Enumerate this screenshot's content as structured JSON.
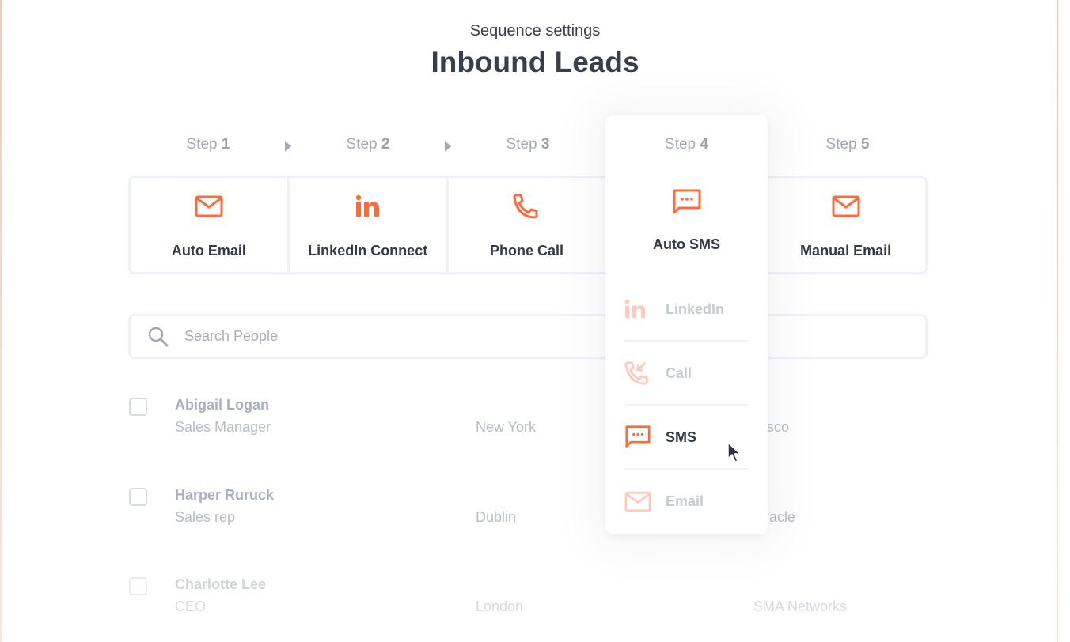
{
  "header": {
    "subtitle": "Sequence settings",
    "title": "Inbound Leads"
  },
  "accent_color": "#ff6a3d",
  "steps": [
    {
      "prefix": "Step",
      "number": "1",
      "label": "Auto Email",
      "icon": "mail-icon"
    },
    {
      "prefix": "Step",
      "number": "2",
      "label": "LinkedIn Connect",
      "icon": "linkedin-icon"
    },
    {
      "prefix": "Step",
      "number": "3",
      "label": "Phone Call",
      "icon": "phone-icon"
    },
    {
      "prefix": "Step",
      "number": "4",
      "label": "Auto SMS",
      "icon": "sms-icon"
    },
    {
      "prefix": "Step",
      "number": "5",
      "label": "Manual Email",
      "icon": "mail-icon"
    }
  ],
  "search": {
    "placeholder": "Search People"
  },
  "people": [
    {
      "name": "Abigail Logan",
      "role": "Sales Manager",
      "city": "New York",
      "company": "Cisco"
    },
    {
      "name": "Harper Ruruck",
      "role": "Sales rep",
      "city": "Dublin",
      "company": "Oracle"
    },
    {
      "name": "Charlotte Lee",
      "role": "CEO",
      "city": "London",
      "company": "SMA Networks"
    }
  ],
  "dropdown": {
    "options": [
      {
        "label": "LinkedIn",
        "icon": "linkedin-icon",
        "selected": false
      },
      {
        "label": "Call",
        "icon": "incoming-call-icon",
        "selected": false
      },
      {
        "label": "SMS",
        "icon": "sms-icon",
        "selected": true
      },
      {
        "label": "Email",
        "icon": "mail-icon",
        "selected": false
      }
    ]
  }
}
